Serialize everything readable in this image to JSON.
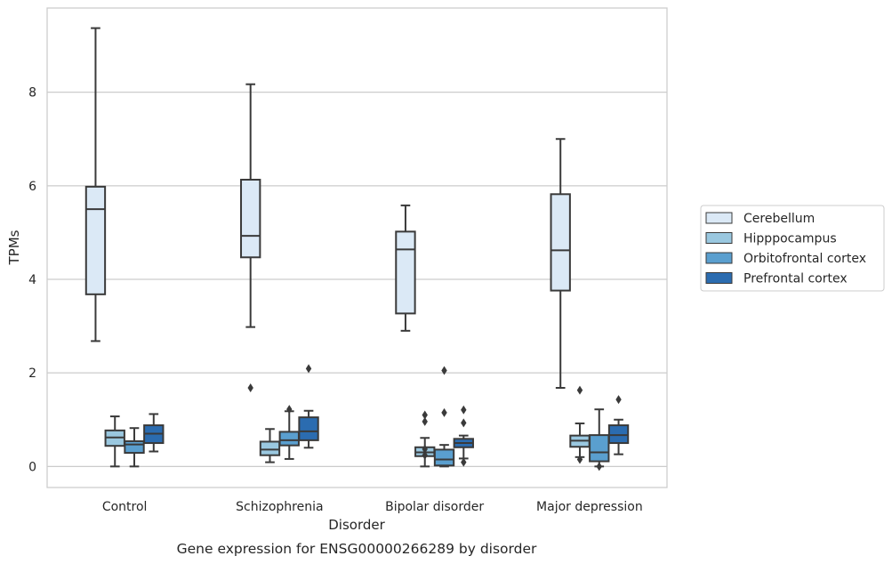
{
  "chart_data": {
    "type": "box",
    "title": "",
    "caption": "Gene expression for ENSG00000266289 by disorder",
    "xlabel": "Disorder",
    "ylabel": "TPMs",
    "ylim": [
      -0.45,
      9.8
    ],
    "yticks": [
      "0",
      "2",
      "4",
      "6",
      "8"
    ],
    "grid": "horizontal",
    "legend_position": "right, outside plot",
    "categories": [
      "Control",
      "Schizophrenia",
      "Bipolar disorder",
      "Major depression"
    ],
    "series": [
      {
        "name": "Cerebellum",
        "color": "#dbe9f6",
        "boxes": [
          {
            "whisker_low": 2.68,
            "q1": 3.68,
            "median": 5.5,
            "q3": 5.98,
            "whisker_high": 9.37,
            "outliers": []
          },
          {
            "whisker_low": 2.98,
            "q1": 4.47,
            "median": 4.93,
            "q3": 6.13,
            "whisker_high": 8.17,
            "outliers": [
              1.68
            ]
          },
          {
            "whisker_low": 2.9,
            "q1": 3.27,
            "median": 4.64,
            "q3": 5.02,
            "whisker_high": 5.58,
            "outliers": []
          },
          {
            "whisker_low": 1.68,
            "q1": 3.76,
            "median": 4.62,
            "q3": 5.82,
            "whisker_high": 7.0,
            "outliers": []
          }
        ]
      },
      {
        "name": "Hipppocampus",
        "color": "#9ac8e0",
        "boxes": [
          {
            "whisker_low": 0.0,
            "q1": 0.44,
            "median": 0.62,
            "q3": 0.77,
            "whisker_high": 1.07,
            "outliers": []
          },
          {
            "whisker_low": 0.09,
            "q1": 0.24,
            "median": 0.36,
            "q3": 0.53,
            "whisker_high": 0.8,
            "outliers": []
          },
          {
            "whisker_low": 0.0,
            "q1": 0.22,
            "median": 0.3,
            "q3": 0.41,
            "whisker_high": 0.61,
            "outliers": [
              0.24,
              0.37,
              0.96,
              1.1
            ]
          },
          {
            "whisker_low": 0.2,
            "q1": 0.42,
            "median": 0.55,
            "q3": 0.66,
            "whisker_high": 0.92,
            "outliers": [
              0.15,
              1.63
            ]
          }
        ]
      },
      {
        "name": "Orbitofrontal cortex",
        "color": "#5a9fcf",
        "boxes": [
          {
            "whisker_low": 0.0,
            "q1": 0.29,
            "median": 0.47,
            "q3": 0.54,
            "whisker_high": 0.82,
            "outliers": []
          },
          {
            "whisker_low": 0.16,
            "q1": 0.45,
            "median": 0.56,
            "q3": 0.74,
            "whisker_high": 1.18,
            "outliers": [
              1.22
            ]
          },
          {
            "whisker_low": 0.0,
            "q1": 0.02,
            "median": 0.15,
            "q3": 0.36,
            "whisker_high": 0.46,
            "outliers": [
              1.15,
              2.05
            ]
          },
          {
            "whisker_low": 0.0,
            "q1": 0.11,
            "median": 0.3,
            "q3": 0.67,
            "whisker_high": 1.22,
            "outliers": [
              0.0
            ]
          }
        ]
      },
      {
        "name": "Prefrontal cortex",
        "color": "#2b6cb0",
        "boxes": [
          {
            "whisker_low": 0.32,
            "q1": 0.5,
            "median": 0.7,
            "q3": 0.88,
            "whisker_high": 1.12,
            "outliers": []
          },
          {
            "whisker_low": 0.4,
            "q1": 0.56,
            "median": 0.75,
            "q3": 1.05,
            "whisker_high": 1.19,
            "outliers": [
              2.09
            ]
          },
          {
            "whisker_low": 0.17,
            "q1": 0.41,
            "median": 0.5,
            "q3": 0.59,
            "whisker_high": 0.66,
            "outliers": [
              0.09,
              0.93,
              1.21
            ]
          },
          {
            "whisker_low": 0.26,
            "q1": 0.5,
            "median": 0.67,
            "q3": 0.88,
            "whisker_high": 1.0,
            "outliers": [
              1.43
            ]
          }
        ]
      }
    ]
  }
}
